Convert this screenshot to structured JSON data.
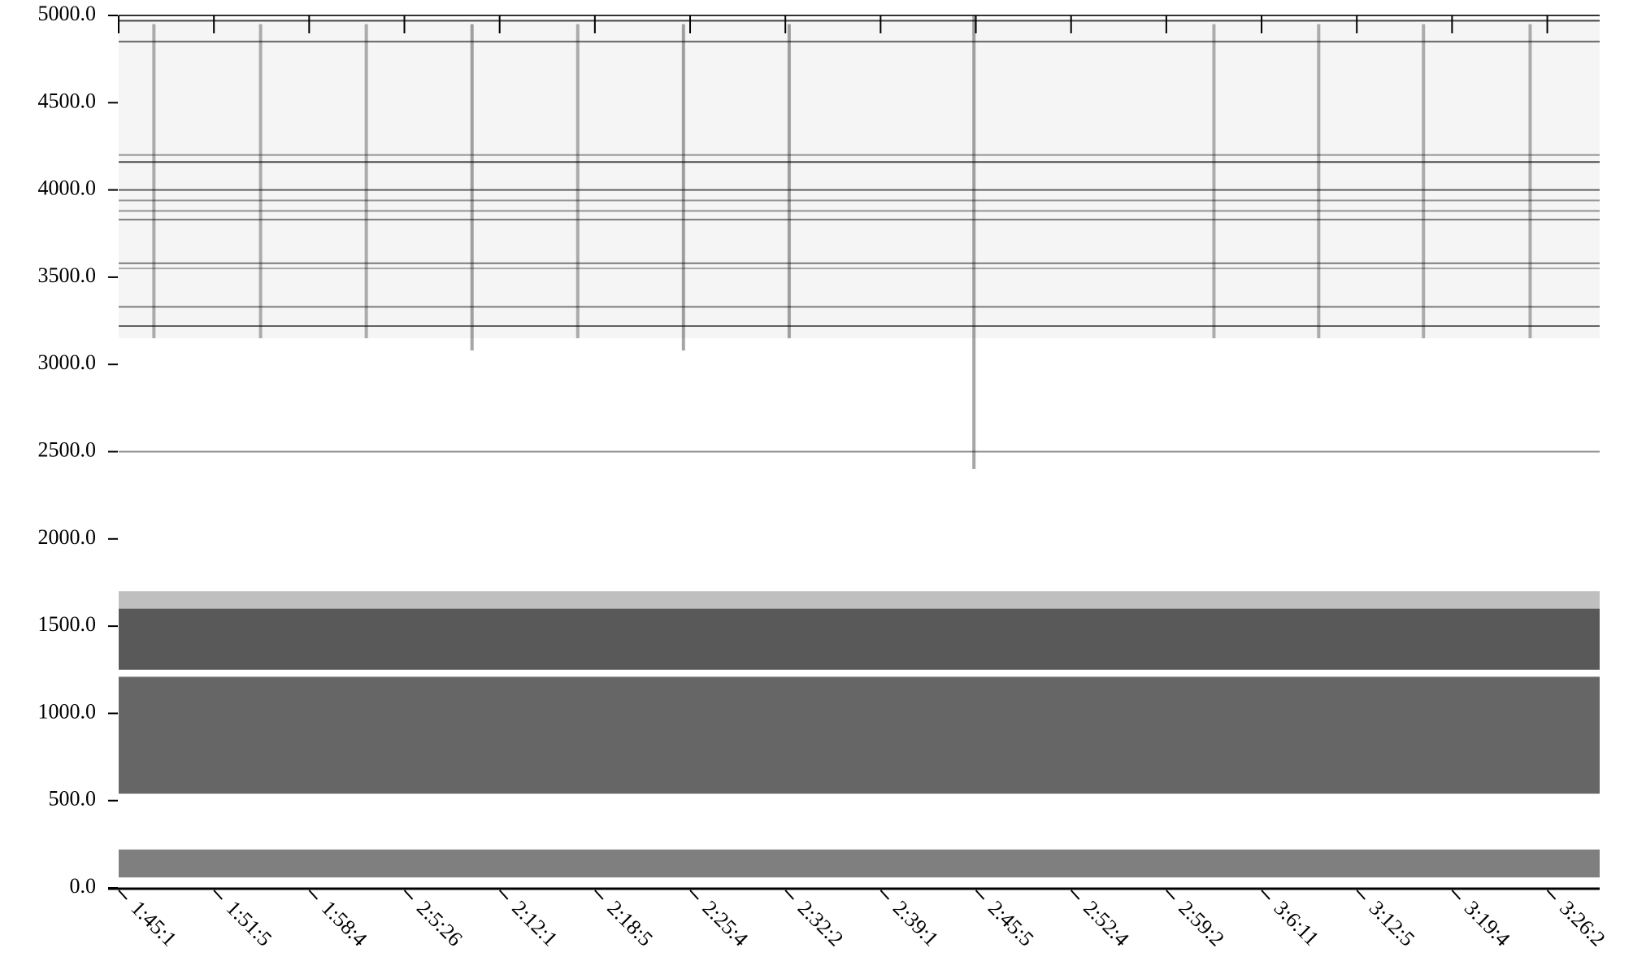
{
  "chart_data": {
    "type": "spectrogram",
    "ylim": [
      0,
      5000
    ],
    "yticks": [
      {
        "value": 0,
        "label": "0.0"
      },
      {
        "value": 500,
        "label": "500.0"
      },
      {
        "value": 1000,
        "label": "1000.0"
      },
      {
        "value": 1500,
        "label": "1500.0"
      },
      {
        "value": 2000,
        "label": "2000.0"
      },
      {
        "value": 2500,
        "label": "2500.0"
      },
      {
        "value": 3000,
        "label": "3000.0"
      },
      {
        "value": 3500,
        "label": "3500.0"
      },
      {
        "value": 4000,
        "label": "4000.0"
      },
      {
        "value": 4500,
        "label": "4500.0"
      },
      {
        "value": 5000,
        "label": "5000.0"
      }
    ],
    "xlim": [
      0,
      15.55
    ],
    "xticks": [
      {
        "value": 0,
        "label": "1:45:1"
      },
      {
        "value": 1,
        "label": "1:51:5"
      },
      {
        "value": 2,
        "label": "1:58:4"
      },
      {
        "value": 3,
        "label": "2:5:26"
      },
      {
        "value": 4,
        "label": "2:12:1"
      },
      {
        "value": 5,
        "label": "2:18:5"
      },
      {
        "value": 6,
        "label": "2:25:4"
      },
      {
        "value": 7,
        "label": "2:32:2"
      },
      {
        "value": 8,
        "label": "2:39:1"
      },
      {
        "value": 9,
        "label": "2:45:5"
      },
      {
        "value": 10,
        "label": "2:52:4"
      },
      {
        "value": 11,
        "label": "2:59:2"
      },
      {
        "value": 12,
        "label": "3:6:11"
      },
      {
        "value": 13,
        "label": "3:12:5"
      },
      {
        "value": 14,
        "label": "3:19:4"
      },
      {
        "value": 15,
        "label": "3:26:2"
      }
    ],
    "color": "#000000",
    "bands": [
      {
        "from": 60,
        "to": 220,
        "intensity": 0.5
      },
      {
        "from": 540,
        "to": 1210,
        "intensity": 0.6
      },
      {
        "from": 1250,
        "to": 1600,
        "intensity": 0.65
      },
      {
        "from": 1600,
        "to": 1700,
        "intensity": 0.25
      },
      {
        "from": 3150,
        "to": 4980,
        "intensity": 0.04
      }
    ],
    "lines": [
      {
        "y": 2500,
        "intensity": 0.45
      },
      {
        "y": 3220,
        "intensity": 0.6
      },
      {
        "y": 3330,
        "intensity": 0.5
      },
      {
        "y": 3550,
        "intensity": 0.3
      },
      {
        "y": 3580,
        "intensity": 0.5
      },
      {
        "y": 3830,
        "intensity": 0.5
      },
      {
        "y": 3880,
        "intensity": 0.4
      },
      {
        "y": 3940,
        "intensity": 0.4
      },
      {
        "y": 4000,
        "intensity": 0.6
      },
      {
        "y": 4160,
        "intensity": 0.7
      },
      {
        "y": 4200,
        "intensity": 0.4
      },
      {
        "y": 4850,
        "intensity": 0.6
      },
      {
        "y": 4970,
        "intensity": 0.7
      },
      {
        "y": 5000,
        "intensity": 0.8
      }
    ],
    "streaks": [
      {
        "x": 0.37,
        "from": 3150,
        "to": 4950,
        "intensity": 0.3
      },
      {
        "x": 1.49,
        "from": 3150,
        "to": 4950,
        "intensity": 0.3
      },
      {
        "x": 2.6,
        "from": 3150,
        "to": 4950,
        "intensity": 0.3
      },
      {
        "x": 3.71,
        "from": 3080,
        "to": 4950,
        "intensity": 0.35
      },
      {
        "x": 4.82,
        "from": 3150,
        "to": 4950,
        "intensity": 0.3
      },
      {
        "x": 5.93,
        "from": 3080,
        "to": 4950,
        "intensity": 0.35
      },
      {
        "x": 7.04,
        "from": 3150,
        "to": 4950,
        "intensity": 0.35
      },
      {
        "x": 8.98,
        "from": 2400,
        "to": 5000,
        "intensity": 0.35
      },
      {
        "x": 11.5,
        "from": 3150,
        "to": 4950,
        "intensity": 0.3
      },
      {
        "x": 12.6,
        "from": 3150,
        "to": 4950,
        "intensity": 0.3
      },
      {
        "x": 13.7,
        "from": 3150,
        "to": 4950,
        "intensity": 0.3
      },
      {
        "x": 14.82,
        "from": 3150,
        "to": 4950,
        "intensity": 0.3
      }
    ]
  }
}
